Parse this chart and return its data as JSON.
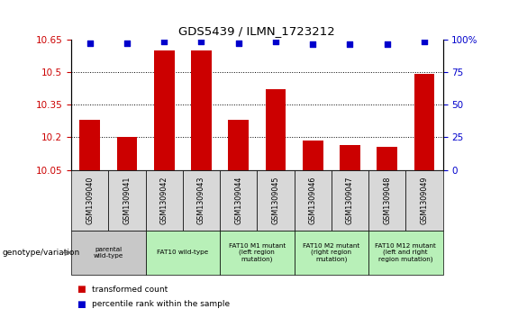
{
  "title": "GDS5439 / ILMN_1723212",
  "samples": [
    "GSM1309040",
    "GSM1309041",
    "GSM1309042",
    "GSM1309043",
    "GSM1309044",
    "GSM1309045",
    "GSM1309046",
    "GSM1309047",
    "GSM1309048",
    "GSM1309049"
  ],
  "bar_values": [
    10.28,
    10.2,
    10.6,
    10.6,
    10.28,
    10.42,
    10.185,
    10.165,
    10.155,
    10.49
  ],
  "percentile_values": [
    97,
    97,
    98,
    98,
    97,
    98,
    96,
    96,
    96,
    98
  ],
  "ylim_left": [
    10.05,
    10.65
  ],
  "ylim_right": [
    0,
    100
  ],
  "yticks_left": [
    10.05,
    10.2,
    10.35,
    10.5,
    10.65
  ],
  "ytick_labels_left": [
    "10.05",
    "10.2",
    "10.35",
    "10.5",
    "10.65"
  ],
  "yticks_right": [
    0,
    25,
    50,
    75,
    100
  ],
  "ytick_labels_right": [
    "0",
    "25",
    "50",
    "75",
    "100"
  ],
  "bar_color": "#cc0000",
  "percentile_color": "#0000cc",
  "genotype_groups": [
    {
      "label": "parental\nwild-type",
      "start": 0,
      "end": 2,
      "color": "#c8c8c8"
    },
    {
      "label": "FAT10 wild-type",
      "start": 2,
      "end": 4,
      "color": "#b8f0b8"
    },
    {
      "label": "FAT10 M1 mutant\n(left region\nmutation)",
      "start": 4,
      "end": 6,
      "color": "#b8f0b8"
    },
    {
      "label": "FAT10 M2 mutant\n(right region\nmutation)",
      "start": 6,
      "end": 8,
      "color": "#b8f0b8"
    },
    {
      "label": "FAT10 M12 mutant\n(left and right\nregion mutation)",
      "start": 8,
      "end": 10,
      "color": "#b8f0b8"
    }
  ],
  "sample_box_color": "#d8d8d8",
  "genotype_label": "genotype/variation",
  "legend_bar_label": "transformed count",
  "legend_point_label": "percentile rank within the sample",
  "background_color": "#ffffff"
}
